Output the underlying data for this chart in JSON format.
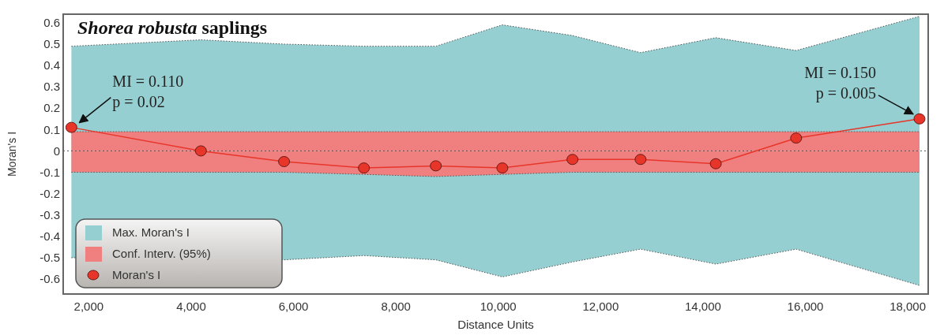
{
  "chart_data": {
    "type": "line",
    "title": "Shorea robusta saplings",
    "xlabel": "Distance Units",
    "ylabel": "Moran's I",
    "x": [
      1660,
      4190,
      5815,
      7375,
      8780,
      10080,
      11450,
      12780,
      14250,
      15820,
      18230
    ],
    "xlim": [
      1500,
      18400
    ],
    "ylim": [
      -0.67,
      0.64
    ],
    "xticks": [
      {
        "value": 2000,
        "label": "2,000"
      },
      {
        "value": 4000,
        "label": "4,000"
      },
      {
        "value": 6000,
        "label": "6,000"
      },
      {
        "value": 8000,
        "label": "8,000"
      },
      {
        "value": 10000,
        "label": "10,000"
      },
      {
        "value": 12000,
        "label": "12,000"
      },
      {
        "value": 14000,
        "label": "14,000"
      },
      {
        "value": 16000,
        "label": "16,000"
      },
      {
        "value": 18000,
        "label": "18,000"
      }
    ],
    "yticks": [
      0.6,
      0.5,
      0.4,
      0.3,
      0.2,
      0.1,
      0,
      -0.1,
      -0.2,
      -0.3,
      -0.4,
      -0.5,
      -0.6
    ],
    "series": [
      {
        "name": "Max. Moran's I",
        "type": "area",
        "color": "#96cfd1",
        "values": [
          0.49,
          0.52,
          0.5,
          0.49,
          0.49,
          0.59,
          0.54,
          0.46,
          0.53,
          0.47,
          0.63
        ]
      },
      {
        "type": "area",
        "color": "#96cfd1",
        "values": [
          -0.5,
          null,
          -0.51,
          -0.49,
          -0.51,
          -0.59,
          -0.52,
          -0.46,
          -0.53,
          -0.46,
          -0.63
        ]
      },
      {
        "name": "Conf. Interv. (95%)",
        "type": "area",
        "color": "#f08080",
        "values": [
          0.09,
          0.09,
          0.09,
          0.09,
          0.09,
          0.09,
          0.09,
          0.09,
          0.09,
          0.09,
          0.09
        ]
      },
      {
        "type": "area",
        "color": "#f08080",
        "values": [
          -0.1,
          -0.1,
          -0.1,
          -0.11,
          -0.12,
          -0.11,
          -0.1,
          -0.1,
          -0.1,
          -0.1,
          -0.1
        ]
      },
      {
        "name": "Moran's I",
        "type": "line",
        "color": "#e8352a",
        "marker": "circle",
        "line_style": "solid",
        "values": [
          0.11,
          0,
          -0.05,
          -0.08,
          -0.07,
          -0.08,
          -0.04,
          -0.04,
          -0.06,
          0.06,
          0.15
        ]
      }
    ],
    "ref_lines": [
      {
        "axis": "y",
        "value": 0,
        "color": "#555555",
        "line_style": "dotted"
      }
    ],
    "annotations": [
      {
        "text": "MI = 0.110\np = 0.02",
        "x": 1660,
        "y": 0.11
      },
      {
        "text": "MI = 0.150\np = 0.005",
        "x": 18230,
        "y": 0.15
      }
    ],
    "legend": "bottom left",
    "grid": false
  }
}
